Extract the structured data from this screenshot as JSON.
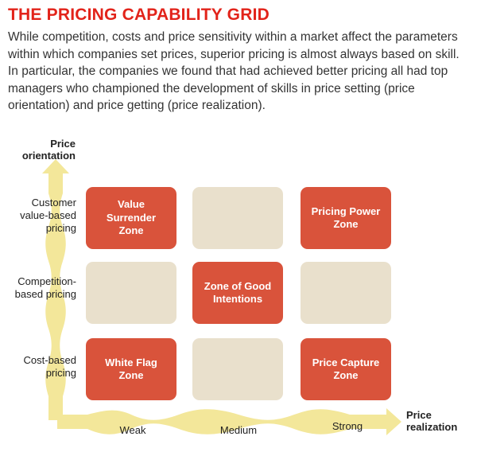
{
  "title": "THE PRICING CAPABILITY GRID",
  "intro": "While competition, costs and price sensitivity within a market affect the parameters within which companies set prices, superior pricing is almost always based on skill. In particular, the companies we found that had achieved better pricing all had top managers who championed the development of skills in price setting (price orientation) and price getting (price realization).",
  "y_axis": {
    "title": "Price orientation",
    "levels": [
      "Customer value-based pricing",
      "Competition-based pricing",
      "Cost-based pricing"
    ]
  },
  "x_axis": {
    "title": "Price realization",
    "levels": [
      "Weak",
      "Medium",
      "Strong"
    ]
  },
  "grid": [
    [
      "Value Surrender Zone",
      "",
      "Pricing Power Zone"
    ],
    [
      "",
      "Zone of Good Intentions",
      ""
    ],
    [
      "White Flag Zone",
      "",
      "Price Capture Zone"
    ]
  ],
  "colors": {
    "title": "#e2231a",
    "zone": "#d9533b",
    "empty": "#e9e0cc",
    "arrow": "#f3e79a"
  }
}
